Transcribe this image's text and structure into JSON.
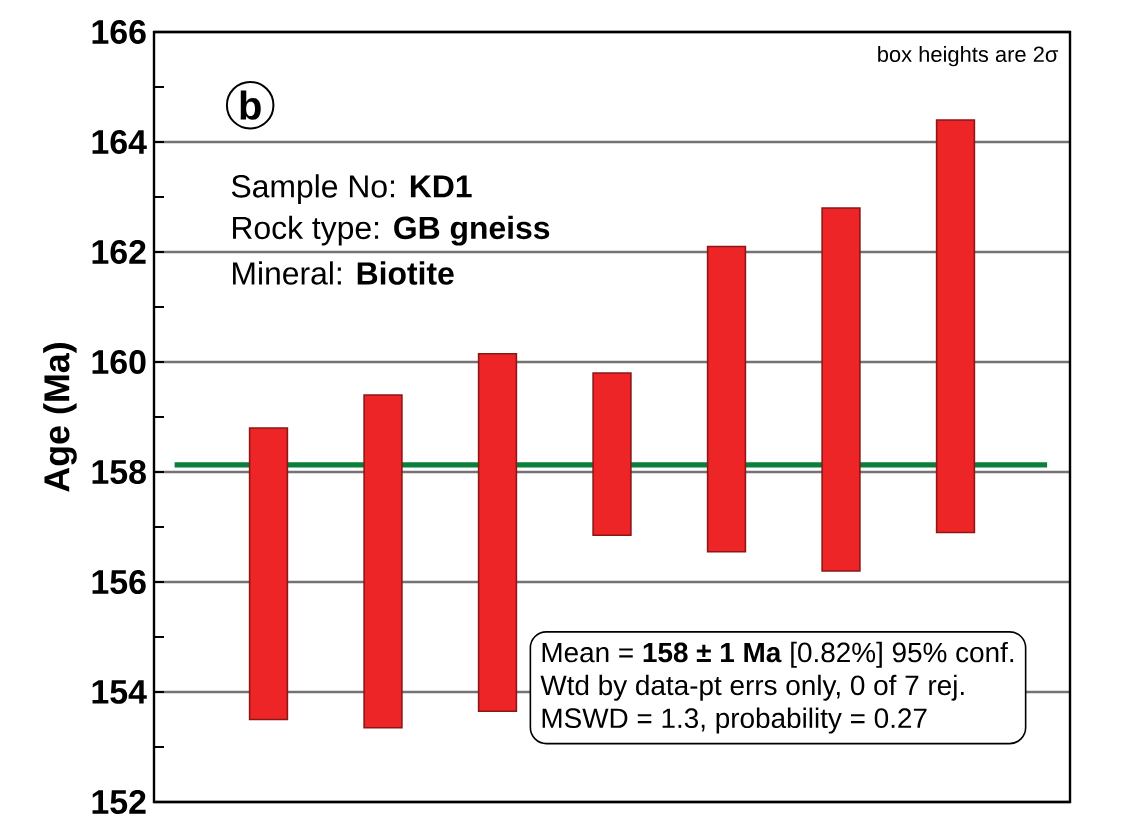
{
  "chart_data": {
    "type": "bar",
    "ylabel": "Age (Ma)",
    "categories": [
      null,
      null,
      null,
      null,
      null,
      null,
      null
    ],
    "base": [
      153.5,
      153.35,
      153.65,
      156.85,
      156.55,
      156.2,
      156.9
    ],
    "values": [
      5.3,
      6.05,
      6.5,
      2.95,
      5.55,
      6.6,
      7.5
    ],
    "color": "#ee2526",
    "ylim": [
      152,
      166
    ],
    "yticks": [
      152,
      {
        "value": 153,
        "label": null
      },
      154,
      {
        "value": 155,
        "label": null
      },
      156,
      {
        "value": 157,
        "label": null
      },
      158,
      {
        "value": 159,
        "label": null
      },
      160,
      {
        "value": 161,
        "label": null
      },
      162,
      {
        "value": 163,
        "label": null
      },
      164,
      {
        "value": 165,
        "label": null
      },
      166
    ],
    "grid": "y",
    "ref_lines": [
      {
        "axis": "y",
        "value": 158.13,
        "color": "#0a7f3a"
      }
    ],
    "annotations": [
      "b",
      "box heights are 2σ",
      "Sample No: **KD1**",
      "Rock type: **GB gneiss**",
      "Mineral: **Biotite**",
      "Mean = **158 ± 1 Ma** [0.82%]  95% conf.",
      "Wtd by data-pt errs only, 0 of 7 rej.",
      "MSWD = 1.3, probability = 0.27"
    ]
  }
}
